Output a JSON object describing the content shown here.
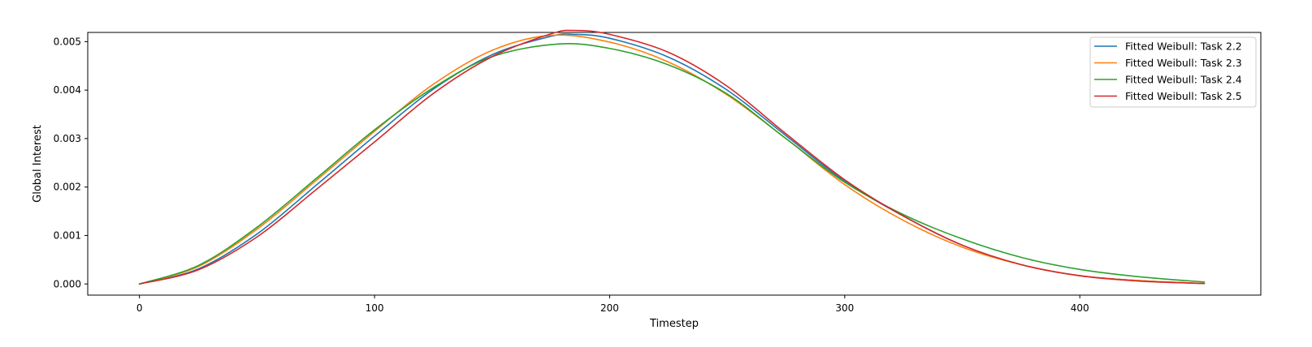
{
  "chart_data": {
    "type": "line",
    "title": "",
    "xlabel": "Timestep",
    "ylabel": "Global Interest",
    "xlim": [
      -22,
      477
    ],
    "ylim": [
      -0.00023,
      0.00519
    ],
    "xticks": [
      0,
      100,
      200,
      300,
      400
    ],
    "xtick_labels": [
      "0",
      "100",
      "200",
      "300",
      "400"
    ],
    "yticks": [
      0.0,
      0.001,
      0.002,
      0.003,
      0.004,
      0.005
    ],
    "ytick_labels": [
      "0.000",
      "0.001",
      "0.002",
      "0.003",
      "0.004",
      "0.005"
    ],
    "grid": false,
    "legend_position": "upper right",
    "series": [
      {
        "name": "Fitted Weibull: Task 2.2",
        "color": "#1f77b4",
        "x": [
          0,
          25,
          50,
          75,
          100,
          125,
          150,
          175,
          185,
          200,
          225,
          250,
          275,
          300,
          325,
          350,
          375,
          400,
          425,
          453
        ],
        "y": [
          0.0,
          0.00031,
          0.00103,
          0.00203,
          0.00305,
          0.00402,
          0.00473,
          0.00511,
          0.00515,
          0.00507,
          0.00468,
          0.004,
          0.00306,
          0.00212,
          0.0014,
          0.0008,
          0.0004,
          0.00017,
          7e-05,
          1e-05
        ]
      },
      {
        "name": "Fitted Weibull: Task 2.3",
        "color": "#ff7f0e",
        "x": [
          0,
          25,
          50,
          75,
          100,
          125,
          150,
          175,
          200,
          225,
          250,
          275,
          300,
          325,
          350,
          375,
          400,
          425,
          453
        ],
        "y": [
          0.0,
          0.00036,
          0.00113,
          0.00213,
          0.00315,
          0.00412,
          0.00482,
          0.00513,
          0.00499,
          0.00458,
          0.0039,
          0.003,
          0.00205,
          0.00131,
          0.00076,
          0.0004,
          0.00017,
          7e-05,
          1e-05
        ]
      },
      {
        "name": "Fitted Weibull: Task 2.4",
        "color": "#2ca02c",
        "x": [
          0,
          25,
          50,
          75,
          100,
          125,
          150,
          178,
          200,
          225,
          250,
          275,
          300,
          325,
          350,
          375,
          400,
          425,
          453
        ],
        "y": [
          0.0,
          0.00038,
          0.00117,
          0.00217,
          0.00318,
          0.00405,
          0.00469,
          0.00495,
          0.00486,
          0.00452,
          0.00392,
          0.003,
          0.0021,
          0.00143,
          0.00093,
          0.00055,
          0.0003,
          0.00015,
          4e-05
        ]
      },
      {
        "name": "Fitted Weibull: Task 2.5",
        "color": "#d62728",
        "x": [
          0,
          25,
          50,
          75,
          100,
          125,
          150,
          175,
          185,
          200,
          225,
          250,
          275,
          300,
          325,
          350,
          375,
          400,
          425,
          453
        ],
        "y": [
          0.0,
          0.00029,
          0.00097,
          0.00194,
          0.00293,
          0.00393,
          0.00469,
          0.00516,
          0.00523,
          0.00515,
          0.00478,
          0.00408,
          0.0031,
          0.00215,
          0.0014,
          0.0008,
          0.0004,
          0.00017,
          6e-05,
          1e-05
        ]
      }
    ]
  }
}
